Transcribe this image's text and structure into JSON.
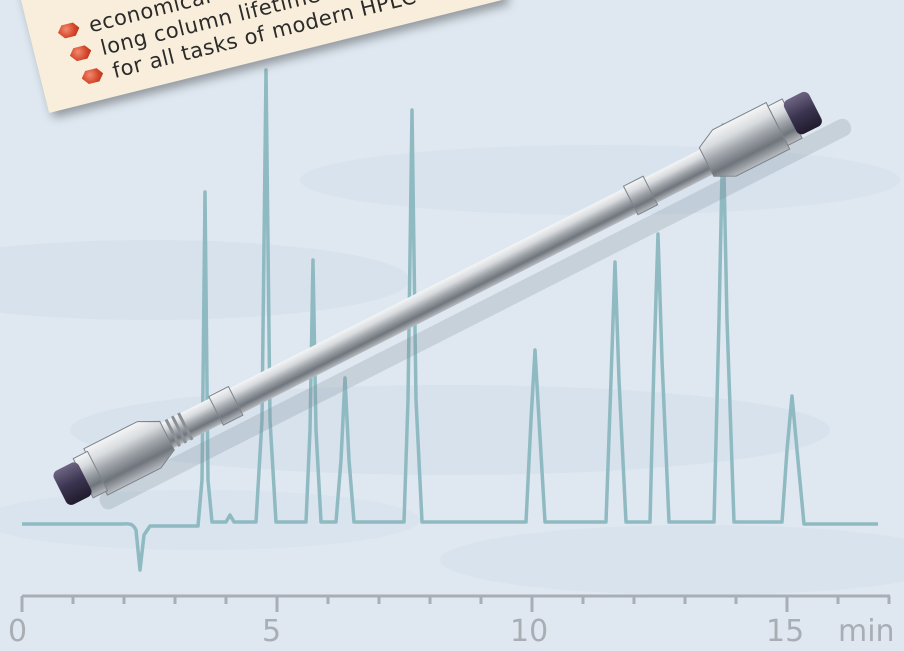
{
  "note": {
    "bullets": [
      "economical",
      "long column lifetime",
      "for all tasks of modern HPLC"
    ]
  },
  "axis": {
    "tick_labels": [
      "0",
      "5",
      "10",
      "15"
    ],
    "unit": "min"
  },
  "colors": {
    "trace": "#8fbac2",
    "axis": "#a9aeb4",
    "note_paper": "#f8eedb",
    "bullet": "#d2452a",
    "column_steel": "#c9ccd0",
    "end_cap": "#3b3450"
  }
}
